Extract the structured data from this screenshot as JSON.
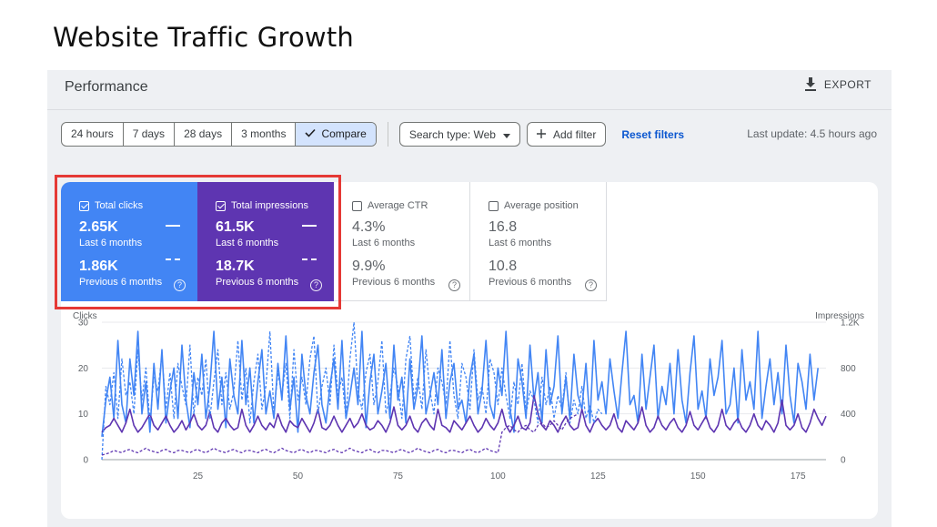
{
  "slide_title": "Website Traffic Growth",
  "panel": {
    "title": "Performance",
    "export_label": "EXPORT",
    "last_update": "Last update: 4.5 hours ago"
  },
  "date_ranges": [
    {
      "label": "24 hours",
      "active": false
    },
    {
      "label": "7 days",
      "active": false
    },
    {
      "label": "28 days",
      "active": false
    },
    {
      "label": "3 months",
      "active": false
    },
    {
      "label": "Compare",
      "active": true
    }
  ],
  "filters": {
    "search_type": "Search type: Web",
    "add_filter": "Add filter",
    "reset": "Reset filters"
  },
  "metrics": [
    {
      "name": "Total clicks",
      "checked": true,
      "current": "2.65K",
      "current_label": "Last 6 months",
      "previous": "1.86K",
      "previous_label": "Previous 6 months"
    },
    {
      "name": "Total impressions",
      "checked": true,
      "current": "61.5K",
      "current_label": "Last 6 months",
      "previous": "18.7K",
      "previous_label": "Previous 6 months"
    },
    {
      "name": "Average CTR",
      "checked": false,
      "current": "4.3%",
      "current_label": "Last 6 months",
      "previous": "9.9%",
      "previous_label": "Previous 6 months"
    },
    {
      "name": "Average position",
      "checked": false,
      "current": "16.8",
      "current_label": "Last 6 months",
      "previous": "10.8",
      "previous_label": "Previous 6 months"
    }
  ],
  "colors": {
    "clicks": "#4285f4",
    "impressions": "#5e35b1",
    "highlight": "#e53935"
  },
  "chart_data": {
    "type": "line",
    "ylabel_left": "Clicks",
    "ylabel_right": "Impressions",
    "y_ticks_left": [
      "30",
      "20",
      "10",
      "0"
    ],
    "y_ticks_right": [
      "1.2K",
      "800",
      "400",
      "0"
    ],
    "x_ticks": [
      "25",
      "50",
      "75",
      "100",
      "125",
      "150",
      "175"
    ],
    "xlim": [
      1,
      182
    ],
    "ylim_left": [
      0,
      30
    ],
    "ylim_right": [
      0,
      1200
    ],
    "series": [
      {
        "name": "Total clicks",
        "period": "Last 6 months",
        "axis": "left",
        "style": "solid",
        "values": [
          5,
          13,
          18,
          9,
          26,
          12,
          8,
          22,
          14,
          28,
          10,
          17,
          6,
          21,
          11,
          24,
          8,
          15,
          20,
          9,
          25,
          13,
          7,
          19,
          12,
          23,
          9,
          16,
          28,
          11,
          18,
          7,
          22,
          14,
          10,
          26,
          12,
          20,
          8,
          17,
          24,
          10,
          15,
          9,
          21,
          13,
          27,
          11,
          18,
          6,
          23,
          14,
          10,
          19,
          25,
          12,
          8,
          16,
          22,
          11,
          26,
          9,
          14,
          20,
          12,
          28,
          7,
          17,
          23,
          10,
          15,
          21,
          9,
          25,
          13,
          18,
          8,
          22,
          11,
          16,
          27,
          10,
          14,
          19,
          12,
          24,
          9,
          17,
          21,
          11,
          13,
          8,
          18,
          23,
          10,
          15,
          26,
          12,
          9,
          20,
          14,
          28,
          11,
          6,
          22,
          17,
          9,
          25,
          13,
          19,
          8,
          24,
          12,
          16,
          27,
          10,
          18,
          9,
          23,
          14,
          11,
          21,
          8,
          26,
          13,
          17,
          10,
          22,
          15,
          9,
          19,
          28,
          12,
          14,
          8,
          23,
          11,
          18,
          25,
          9,
          16,
          12,
          21,
          10,
          24,
          13,
          8,
          19,
          27,
          11,
          15,
          9,
          22,
          14,
          18,
          26,
          10,
          12,
          20,
          8,
          24,
          13,
          17,
          11,
          28,
          9,
          16,
          22,
          12,
          19,
          10,
          25,
          14,
          8,
          21,
          17,
          11,
          23,
          13,
          20
        ]
      },
      {
        "name": "Total impressions",
        "period": "Last 6 months",
        "axis": "right",
        "style": "solid",
        "values": [
          240,
          280,
          300,
          360,
          300,
          240,
          320,
          440,
          300,
          240,
          280,
          340,
          400,
          300,
          260,
          320,
          380,
          300,
          240,
          280,
          340,
          260,
          320,
          400,
          300,
          260,
          300,
          420,
          280,
          240,
          320,
          360,
          300,
          260,
          280,
          440,
          300,
          240,
          300,
          380,
          300,
          260,
          320,
          280,
          400,
          300,
          240,
          340,
          300,
          280,
          360,
          300,
          240,
          320,
          440,
          280,
          260,
          300,
          380,
          300,
          240,
          300,
          360,
          280,
          320,
          400,
          300,
          260,
          280,
          340,
          300,
          240,
          320,
          460,
          300,
          260,
          300,
          380,
          280,
          240,
          320,
          360,
          300,
          260,
          440,
          300,
          280,
          240,
          340,
          300,
          260,
          320,
          380,
          300,
          240,
          280,
          360,
          300,
          260,
          320,
          440,
          300,
          240,
          300,
          380,
          280,
          260,
          320,
          560,
          400,
          300,
          260,
          340,
          300,
          240,
          320,
          380,
          300,
          260,
          280,
          440,
          300,
          240,
          320,
          360,
          300,
          260,
          300,
          400,
          280,
          240,
          340,
          300,
          260,
          320,
          460,
          300,
          240,
          280,
          380,
          300,
          260,
          320,
          360,
          280,
          240,
          300,
          420,
          300,
          260,
          320,
          380,
          280,
          240,
          300,
          440,
          300,
          260,
          320,
          360,
          280,
          240,
          300,
          400,
          300,
          260,
          340,
          300,
          240,
          320,
          520,
          300,
          260,
          300,
          400,
          280,
          240,
          320,
          440,
          360,
          300,
          380
        ]
      },
      {
        "name": "Total clicks",
        "period": "Previous 6 months",
        "axis": "left",
        "style": "dashed",
        "values": [
          0,
          16,
          12,
          19,
          9,
          22,
          14,
          17,
          10,
          24,
          13,
          20,
          8,
          18,
          15,
          23,
          11,
          19,
          9,
          21,
          16,
          12,
          25,
          10,
          18,
          14,
          22,
          9,
          17,
          24,
          12,
          19,
          11,
          15,
          26,
          13,
          20,
          8,
          17,
          23,
          11,
          16,
          28,
          10,
          19,
          14,
          21,
          9,
          24,
          13,
          18,
          12,
          22,
          27,
          10,
          16,
          20,
          12,
          25,
          14,
          18,
          9,
          22,
          30,
          15,
          11,
          19,
          23,
          12,
          17,
          26,
          10,
          14,
          20,
          16,
          9,
          22,
          27,
          13,
          18,
          11,
          24,
          15,
          10,
          20,
          17,
          12,
          26,
          14,
          9,
          21,
          18,
          11,
          24,
          13,
          16,
          10,
          22,
          19,
          12,
          20,
          14,
          9,
          17,
          12,
          21,
          10,
          15,
          13,
          8,
          18,
          12,
          16,
          9,
          14,
          11,
          19,
          8,
          13,
          10,
          16,
          9,
          12,
          8,
          11,
          10
        ]
      },
      {
        "name": "Total impressions",
        "period": "Previous 6 months",
        "axis": "right",
        "style": "dashed",
        "values": [
          40,
          50,
          60,
          80,
          70,
          60,
          80,
          90,
          70,
          60,
          80,
          100,
          80,
          70,
          60,
          80,
          90,
          70,
          60,
          80,
          80,
          70,
          60,
          80,
          90,
          70,
          60,
          80,
          100,
          80,
          70,
          60,
          80,
          90,
          70,
          60,
          80,
          80,
          70,
          60,
          80,
          90,
          70,
          60,
          80,
          100,
          80,
          70,
          60,
          80,
          90,
          70,
          60,
          80,
          80,
          70,
          60,
          80,
          90,
          70,
          60,
          80,
          100,
          80,
          70,
          60,
          80,
          90,
          70,
          60,
          80,
          80,
          70,
          60,
          80,
          90,
          70,
          60,
          80,
          100,
          80,
          70,
          60,
          80,
          90,
          70,
          60,
          80,
          80,
          70,
          60,
          80,
          90,
          70,
          60,
          80,
          100,
          80,
          70,
          60,
          240,
          280,
          300,
          260,
          240,
          280,
          300,
          260,
          240,
          300,
          320,
          280,
          300,
          340,
          300,
          260,
          320,
          360,
          380,
          400
        ]
      }
    ]
  }
}
